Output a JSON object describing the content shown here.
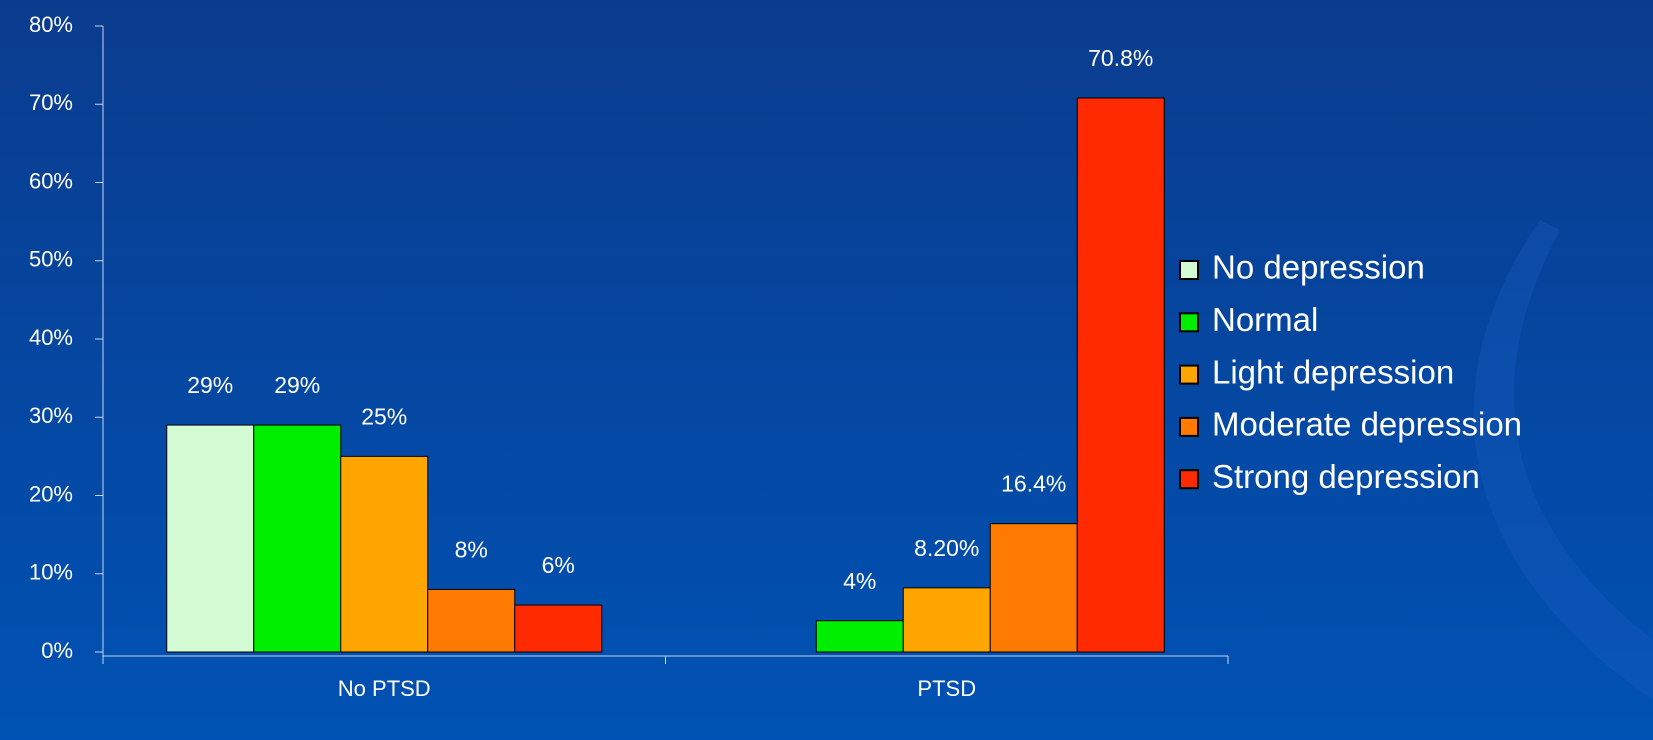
{
  "chart_data": {
    "type": "bar",
    "categories": [
      "No PTSD",
      "PTSD"
    ],
    "series": [
      {
        "name": "No depression",
        "color": "#d4fcd4",
        "values": [
          29,
          null
        ],
        "value_labels": [
          "29%",
          null
        ]
      },
      {
        "name": "Normal",
        "color": "#00ee00",
        "values": [
          29,
          4
        ],
        "value_labels": [
          "29%",
          "4%"
        ]
      },
      {
        "name": "Light depression",
        "color": "#ffa500",
        "values": [
          25,
          8.2
        ],
        "value_labels": [
          "25%",
          "8.20%"
        ]
      },
      {
        "name": "Moderate depression",
        "color": "#ff7a00",
        "values": [
          8,
          16.4
        ],
        "value_labels": [
          "8%",
          "16.4%"
        ]
      },
      {
        "name": "Strong depression",
        "color": "#ff2a00",
        "values": [
          6,
          70.8
        ],
        "value_labels": [
          "6%",
          "70.8%"
        ]
      }
    ],
    "ylim": [
      0,
      80
    ],
    "yticks": [
      {
        "value": 0,
        "label": "0%"
      },
      {
        "value": 10,
        "label": "10%"
      },
      {
        "value": 20,
        "label": "20%"
      },
      {
        "value": 30,
        "label": "30%"
      },
      {
        "value": 40,
        "label": "40%"
      },
      {
        "value": 50,
        "label": "50%"
      },
      {
        "value": 60,
        "label": "60%"
      },
      {
        "value": 70,
        "label": "70%"
      },
      {
        "value": 80,
        "label": "80%"
      }
    ],
    "grid": false,
    "legend": "right"
  }
}
